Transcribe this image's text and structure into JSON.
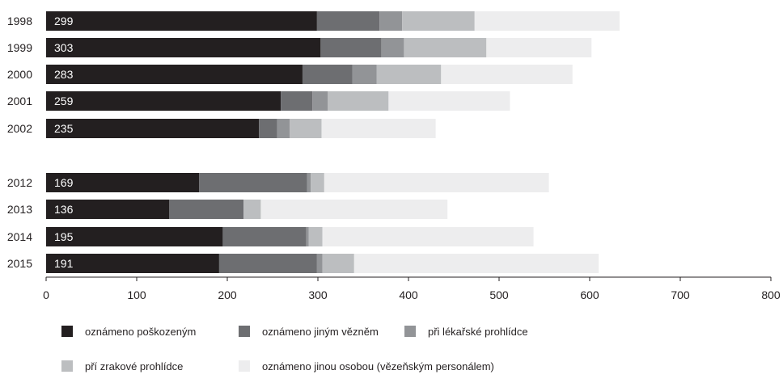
{
  "chart_data": {
    "type": "bar",
    "orientation": "horizontal",
    "stacked": true,
    "categories": [
      "1998",
      "1999",
      "2000",
      "2001",
      "2002",
      "2012",
      "2013",
      "2014",
      "2015"
    ],
    "category_gap_after": "2002",
    "xlim": [
      0,
      800
    ],
    "xticks": [
      "0",
      "100",
      "200",
      "300",
      "400",
      "500",
      "600",
      "700",
      "800"
    ],
    "grid": false,
    "legend_position": "bottom",
    "value_labels": [
      "299",
      "303",
      "283",
      "259",
      "235",
      "169",
      "136",
      "195",
      "191"
    ],
    "series": [
      {
        "name": "oznámeno poškozeným",
        "color": "#231f20",
        "values": [
          299,
          303,
          283,
          259,
          235,
          169,
          136,
          195,
          191
        ]
      },
      {
        "name": "oznámeno jiným vězněm",
        "color": "#6d6e71",
        "values": [
          69,
          67,
          55,
          35,
          20,
          119,
          82,
          92,
          108
        ]
      },
      {
        "name": "při lékařské prohlídce",
        "color": "#929497",
        "values": [
          25,
          25,
          27,
          17,
          14,
          4,
          0,
          3,
          6
        ]
      },
      {
        "name": "pří zrakové prohlídce",
        "color": "#bcbec0",
        "values": [
          80,
          91,
          71,
          67,
          35,
          15,
          19,
          15,
          35
        ]
      },
      {
        "name": "oznámeno jinou osobou (vězeňským personálem)",
        "color": "#ededee",
        "values": [
          160,
          116,
          145,
          134,
          126,
          248,
          206,
          233,
          270
        ]
      }
    ]
  }
}
